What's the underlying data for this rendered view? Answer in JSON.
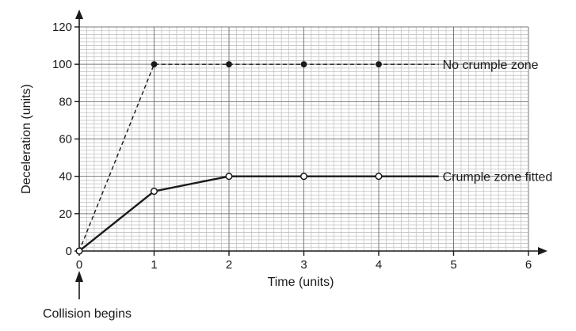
{
  "chart_data": {
    "type": "line",
    "xlabel": "Time (units)",
    "ylabel": "Deceleration (units)",
    "xlim": [
      0,
      6
    ],
    "ylim": [
      0,
      120
    ],
    "x_ticks": [
      0,
      1,
      2,
      3,
      4,
      5,
      6
    ],
    "y_ticks": [
      0,
      20,
      40,
      60,
      80,
      100,
      120
    ],
    "grid": true,
    "grid_minor_per_major_x": 10,
    "grid_minor_per_major_y": 10,
    "series": [
      {
        "name": "No crumple zone",
        "style": "dashed",
        "marker": "filled-circle",
        "x": [
          0,
          1,
          2,
          3,
          4
        ],
        "y": [
          0,
          100,
          100,
          100,
          100
        ],
        "line_end_x": 4.8
      },
      {
        "name": "Crumple zone fitted",
        "style": "solid",
        "marker": "open-circle",
        "x": [
          0,
          1,
          2,
          3,
          4
        ],
        "y": [
          0,
          32,
          40,
          40,
          40
        ],
        "line_end_x": 4.8
      }
    ],
    "annotation": {
      "text": "Collision begins",
      "x": 0
    },
    "colors": {
      "line": "#1a1a1a",
      "grid_minor": "#c4c4c4",
      "grid_major": "#7a7a7a"
    }
  }
}
